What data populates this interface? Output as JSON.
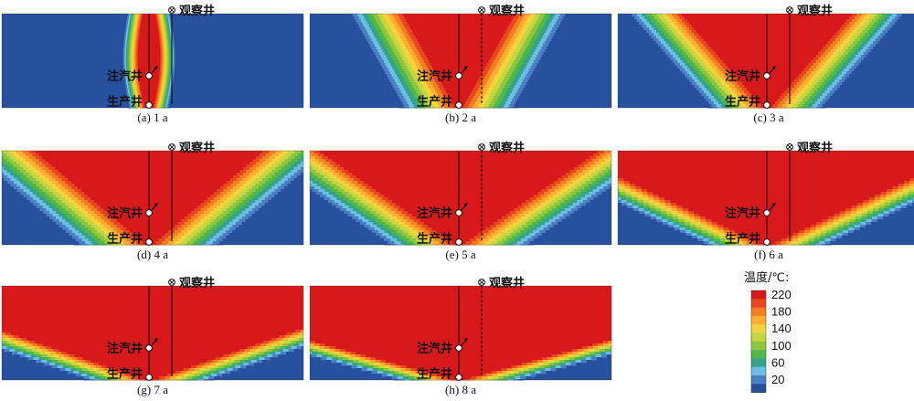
{
  "figure": {
    "panels": [
      {
        "caption": "(a) 1 a",
        "year": 1
      },
      {
        "caption": "(b) 2 a",
        "year": 2
      },
      {
        "caption": "(c) 3 a",
        "year": 3
      },
      {
        "caption": "(d) 4 a",
        "year": 4
      },
      {
        "caption": "(e) 5 a",
        "year": 5
      },
      {
        "caption": "(f) 6 a",
        "year": 6
      },
      {
        "caption": "(g) 7 a",
        "year": 7
      },
      {
        "caption": "(h) 8 a",
        "year": 8
      }
    ],
    "labels": {
      "observation_well": "观察井",
      "injection_well": "注汽井",
      "production_well": "生产井"
    },
    "legend": {
      "title": "温度/℃:",
      "ticks": [
        "220",
        "180",
        "140",
        "100",
        "60",
        "20"
      ],
      "colors": [
        "#d7191c",
        "#e8461e",
        "#f47f20",
        "#fdae32",
        "#f4d43a",
        "#c6d641",
        "#8ec63f",
        "#4fb847",
        "#36a28a",
        "#6cbfe4",
        "#4a7fc3",
        "#27509e"
      ]
    }
  }
}
